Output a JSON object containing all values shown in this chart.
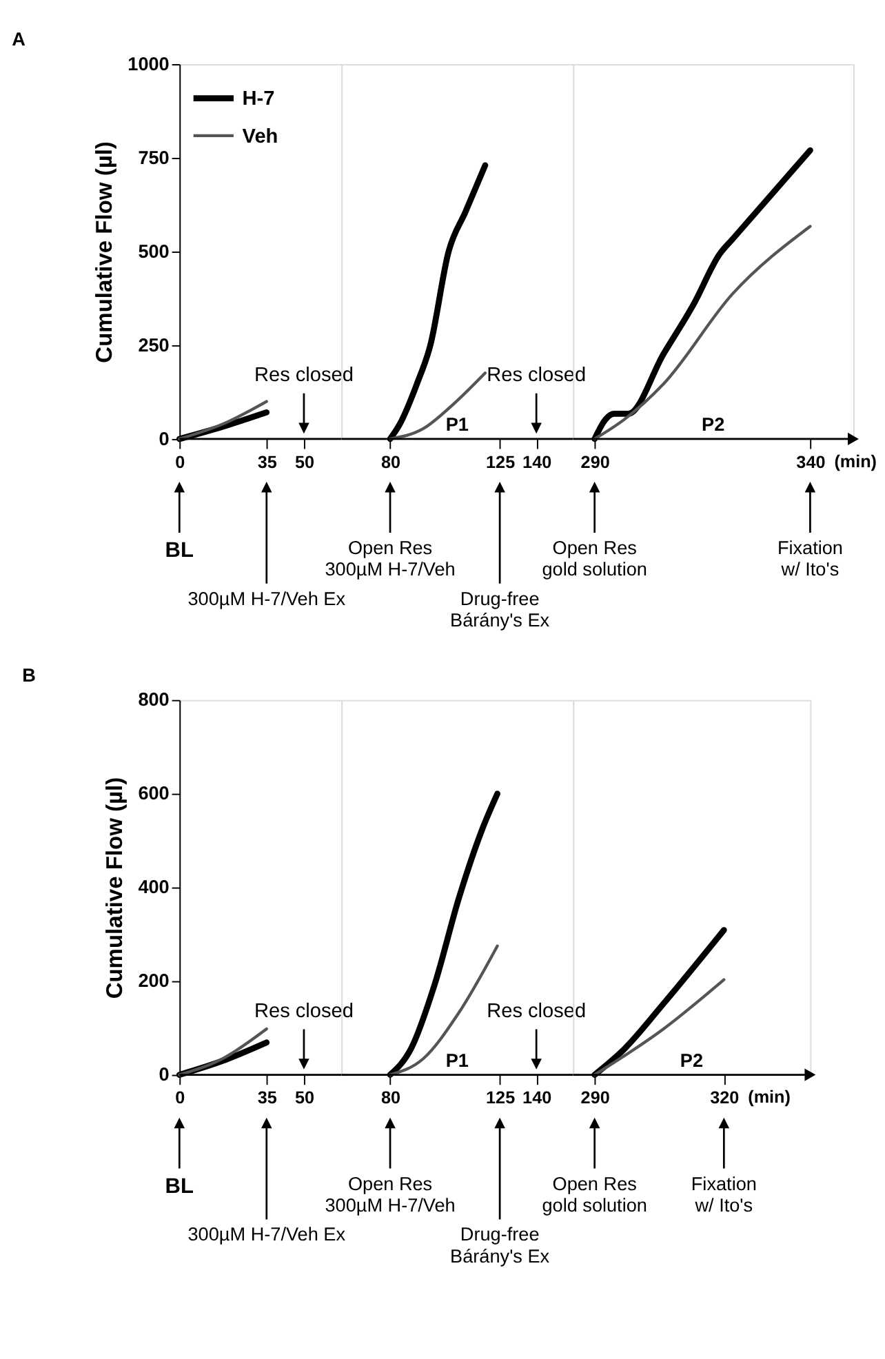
{
  "chart_data": [
    {
      "type": "line",
      "title": "A",
      "ylabel": "Cumulative Flow (µl)",
      "xlim": [
        0,
        65
      ],
      "xticks": [
        0,
        35,
        50
      ],
      "ylim": [
        0,
        1000
      ],
      "yticks": [
        0,
        250,
        500,
        750,
        1000
      ],
      "legend": "top left",
      "series": [
        {
          "name": "H-7",
          "color": "#000000",
          "x": [
            0,
            17.5,
            35
          ],
          "values": [
            0,
            33,
            71
          ]
        },
        {
          "name": "Veh",
          "color": "#555555",
          "x": [
            0,
            17.5,
            35
          ],
          "values": [
            0,
            40,
            100
          ]
        }
      ],
      "annotations": [
        "BL",
        "300µM H-7/Veh Ex",
        "Res closed"
      ]
    },
    {
      "type": "line",
      "xlim": [
        60,
        155
      ],
      "xticks": [
        80,
        125,
        140
      ],
      "ylim": [
        0,
        1000
      ],
      "tick_labels": "x",
      "series": [
        {
          "name": "H-7",
          "color": "#000000",
          "x": [
            80,
            84,
            91,
            96.5,
            104,
            111,
            119
          ],
          "values": [
            0,
            40,
            147,
            250,
            500,
            607,
            730
          ]
        },
        {
          "name": "Veh",
          "color": "#555555",
          "x": [
            80,
            93.5,
            106,
            119
          ],
          "values": [
            0,
            27,
            93,
            176
          ]
        }
      ],
      "annotations": [
        "P1",
        "Open Res\n300µM H-7/Veh",
        "Drug-free\nBárány's Ex",
        "Res closed"
      ]
    },
    {
      "type": "line",
      "xlabel": "(min)",
      "xlim": [
        285,
        350
      ],
      "xticks": [
        290,
        340
      ],
      "ylim": [
        0,
        1000
      ],
      "tick_labels": "x",
      "series": [
        {
          "name": "H-7",
          "color": "#000000",
          "x": [
            290,
            292.6,
            294.5,
            297.8,
            306,
            313,
            319,
            322,
            340
          ],
          "values": [
            0,
            53,
            67,
            67,
            227,
            360,
            493,
            533,
            770
          ]
        },
        {
          "name": "Veh",
          "color": "#555555",
          "x": [
            290,
            297,
            306,
            322,
            340
          ],
          "values": [
            0,
            53,
            147,
            387,
            567
          ]
        }
      ],
      "annotations": [
        "P2",
        "Open Res\ngold solution",
        "Fixation\nw/ Ito's"
      ]
    },
    {
      "type": "line",
      "title": "B",
      "ylabel": "Cumulative Flow (µl)",
      "xlim": [
        0,
        65
      ],
      "xticks": [
        0,
        35,
        50
      ],
      "ylim": [
        0,
        800
      ],
      "yticks": [
        0,
        200,
        400,
        600,
        800
      ],
      "legend": "top left",
      "series": [
        {
          "name": "H-7",
          "color": "#000000",
          "x": [
            0,
            17.5,
            35
          ],
          "values": [
            0,
            30,
            69
          ]
        },
        {
          "name": "Veh",
          "color": "#555555",
          "x": [
            0,
            17.5,
            35
          ],
          "values": [
            0,
            35,
            98
          ]
        }
      ],
      "annotations": [
        "BL",
        "300µM H-7/Veh Ex",
        "Res closed"
      ]
    },
    {
      "type": "line",
      "xlim": [
        60,
        155
      ],
      "xticks": [
        80,
        125,
        140
      ],
      "ylim": [
        0,
        800
      ],
      "tick_labels": "x",
      "series": [
        {
          "name": "H-7",
          "color": "#000000",
          "x": [
            80,
            88.6,
            98.4,
            108.2,
            118,
            124
          ],
          "values": [
            0,
            56,
            195,
            377,
            527,
            600
          ]
        },
        {
          "name": "Veh",
          "color": "#555555",
          "x": [
            80,
            93.5,
            108,
            124
          ],
          "values": [
            0,
            34,
            131,
            275
          ]
        }
      ],
      "annotations": [
        "P1",
        "Open Res\n300µM H-7/Veh",
        "Drug-free\nBárány's Ex",
        "Res closed"
      ]
    },
    {
      "type": "line",
      "xlabel": "(min)",
      "xlim": [
        285,
        340
      ],
      "xticks": [
        290,
        320
      ],
      "ylim": [
        0,
        800
      ],
      "tick_labels": "x",
      "series": [
        {
          "name": "H-7",
          "color": "#000000",
          "x": [
            290,
            297,
            306,
            320
          ],
          "values": [
            0,
            56,
            152,
            309
          ]
        },
        {
          "name": "Veh",
          "color": "#555555",
          "x": [
            290,
            306,
            320
          ],
          "values": [
            0,
            98,
            203
          ]
        }
      ],
      "annotations": [
        "P2",
        "Open Res\ngold solution",
        "Fixation\nw/ Ito's"
      ]
    }
  ]
}
